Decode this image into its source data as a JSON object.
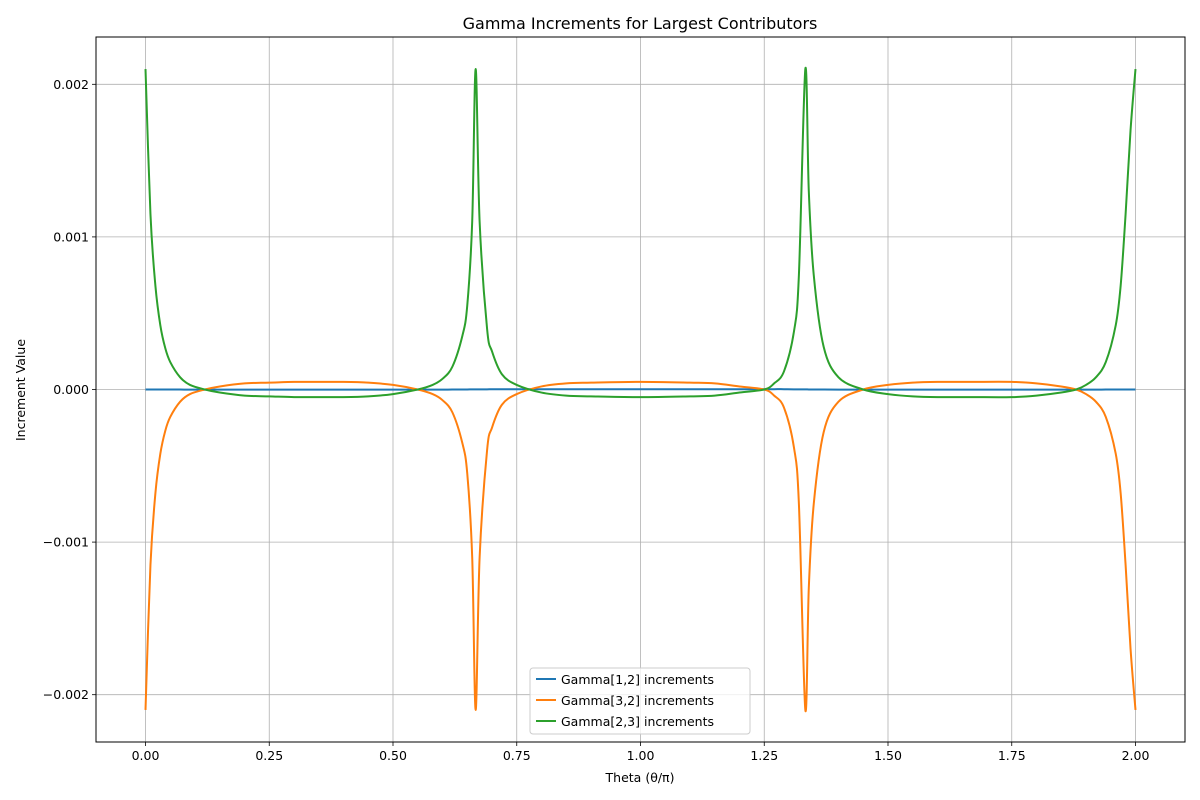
{
  "chart_data": {
    "type": "line",
    "title": "Gamma Increments for Largest Contributors",
    "xlabel": "Theta (θ/π)",
    "ylabel": "Increment Value",
    "xlim": [
      -0.1,
      2.1
    ],
    "ylim": [
      -0.00231,
      0.00231
    ],
    "xticks": [
      0.0,
      0.25,
      0.5,
      0.75,
      1.0,
      1.25,
      1.5,
      1.75,
      2.0
    ],
    "xtick_labels": [
      "0.00",
      "0.25",
      "0.50",
      "0.75",
      "1.00",
      "1.25",
      "1.50",
      "1.75",
      "2.00"
    ],
    "yticks": [
      -0.002,
      -0.001,
      0.0,
      0.001,
      0.002
    ],
    "ytick_labels": [
      "−0.002",
      "−0.001",
      "0.000",
      "0.001",
      "0.002"
    ],
    "grid": true,
    "legend_position": "bottom-center",
    "x": [
      0.0,
      0.01,
      0.02,
      0.03,
      0.04,
      0.05,
      0.07,
      0.09,
      0.12,
      0.15,
      0.2,
      0.25,
      0.3,
      0.333,
      0.4,
      0.45,
      0.5,
      0.55,
      0.58,
      0.6,
      0.62,
      0.64,
      0.65,
      0.66,
      0.667,
      0.675,
      0.69,
      0.7,
      0.72,
      0.75,
      0.8,
      0.85,
      0.9,
      1.0,
      1.1,
      1.15,
      1.2,
      1.25,
      1.27,
      1.29,
      1.31,
      1.32,
      1.333,
      1.34,
      1.35,
      1.37,
      1.4,
      1.45,
      1.5,
      1.55,
      1.6,
      1.667,
      1.75,
      1.8,
      1.85,
      1.88,
      1.9,
      1.92,
      1.94,
      1.96,
      1.97,
      1.98,
      1.99,
      2.0
    ],
    "series": [
      {
        "name": "Gamma[1,2] increments",
        "color": "#1f77b4",
        "values": [
          0.0,
          0.0,
          0.0,
          0.0,
          0.0,
          0.0,
          0.0,
          -1e-06,
          -1e-06,
          -1e-06,
          -1e-06,
          -1e-06,
          -1e-06,
          -1e-06,
          -1e-06,
          -1e-06,
          -1e-06,
          -1e-06,
          -1e-06,
          -1e-06,
          0.0,
          0.0,
          0.0,
          1e-06,
          1e-06,
          1e-06,
          1e-06,
          2e-06,
          2e-06,
          2e-06,
          2e-06,
          2e-06,
          2e-06,
          2e-06,
          2e-06,
          2e-06,
          2e-06,
          2e-06,
          2e-06,
          2e-06,
          1e-06,
          1e-06,
          1e-06,
          0.0,
          0.0,
          0.0,
          -1e-06,
          -1e-06,
          -1e-06,
          -1e-06,
          -1e-06,
          -1e-06,
          -1e-06,
          -1e-06,
          -1e-06,
          -1e-06,
          -1e-06,
          -1e-06,
          0.0,
          0.0,
          0.0,
          0.0,
          0.0,
          0.0
        ]
      },
      {
        "name": "Gamma[3,2] increments",
        "color": "#ff7f0e",
        "values": [
          -0.0021,
          -0.00115,
          -0.00068,
          -0.00042,
          -0.00027,
          -0.00018,
          -8e-05,
          -3e-05,
          0.0,
          2e-05,
          4e-05,
          4.5e-05,
          5e-05,
          5e-05,
          5e-05,
          4.5e-05,
          3e-05,
          0.0,
          -3e-05,
          -7e-05,
          -0.00015,
          -0.00035,
          -0.00055,
          -0.0011,
          -0.0021,
          -0.0011,
          -0.0004,
          -0.00025,
          -0.0001,
          -3e-05,
          2e-05,
          4e-05,
          4.5e-05,
          5e-05,
          4.5e-05,
          4e-05,
          2e-05,
          0.0,
          -4e-05,
          -0.00012,
          -0.00038,
          -0.00075,
          -0.0021,
          -0.0013,
          -0.00075,
          -0.00028,
          -8e-05,
          0.0,
          3e-05,
          4.5e-05,
          5e-05,
          5e-05,
          5e-05,
          4e-05,
          2e-05,
          0.0,
          -3e-05,
          -8e-05,
          -0.00018,
          -0.00042,
          -0.00068,
          -0.00115,
          -0.0017,
          -0.0021
        ]
      },
      {
        "name": "Gamma[2,3] increments",
        "color": "#2ca02c",
        "values": [
          0.0021,
          0.00115,
          0.00068,
          0.00042,
          0.00027,
          0.00018,
          8e-05,
          3e-05,
          0.0,
          -2e-05,
          -4e-05,
          -4.5e-05,
          -5e-05,
          -5e-05,
          -5e-05,
          -4.5e-05,
          -3e-05,
          0.0,
          3e-05,
          7e-05,
          0.00015,
          0.00035,
          0.00055,
          0.0011,
          0.0021,
          0.0011,
          0.0004,
          0.00025,
          0.0001,
          3e-05,
          -2e-05,
          -4e-05,
          -4.5e-05,
          -5e-05,
          -4.5e-05,
          -4e-05,
          -2e-05,
          0.0,
          4e-05,
          0.00012,
          0.00038,
          0.00075,
          0.0021,
          0.0013,
          0.00075,
          0.00028,
          8e-05,
          0.0,
          -3e-05,
          -4.5e-05,
          -5e-05,
          -5e-05,
          -5e-05,
          -4e-05,
          -2e-05,
          0.0,
          3e-05,
          8e-05,
          0.00018,
          0.00042,
          0.00068,
          0.00115,
          0.0017,
          0.0021
        ]
      }
    ]
  }
}
